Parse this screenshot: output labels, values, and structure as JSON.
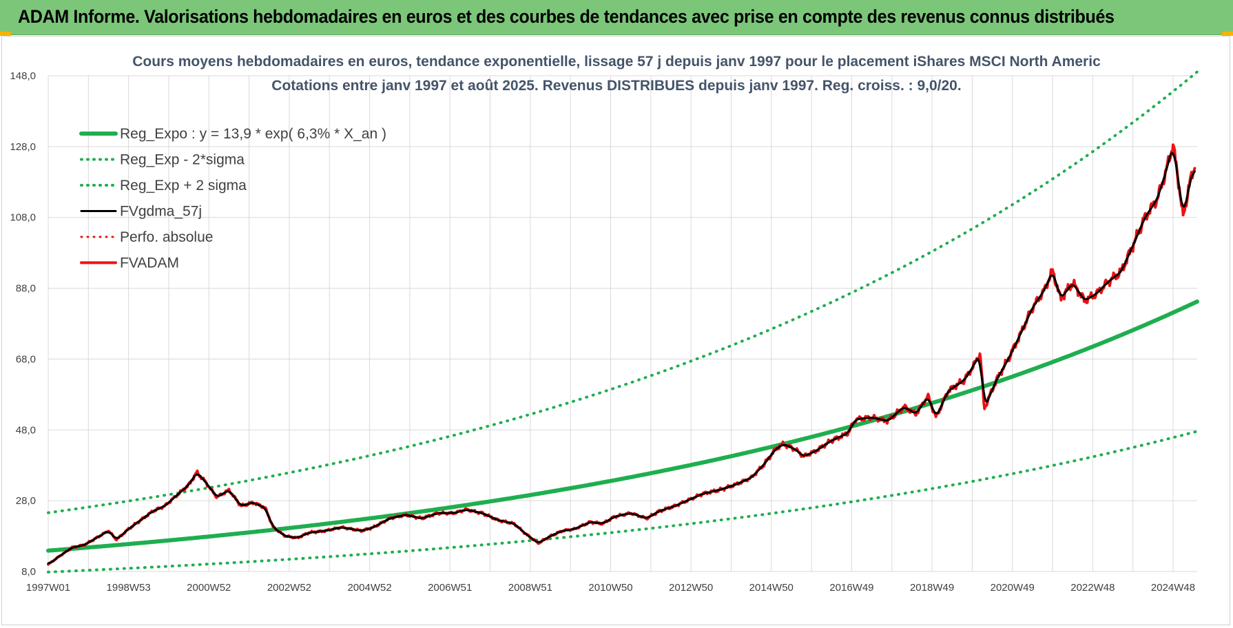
{
  "header": {
    "title": "ADAM Informe. Valorisations hebdomadaires en euros et des courbes de tendances avec prise en compte des revenus connus distribués"
  },
  "colors": {
    "banner": "#7cc67a",
    "green": "#1fae4f",
    "black": "#000000",
    "red": "#ee1111",
    "grid": "#d9d9d9"
  },
  "chart_data": {
    "type": "line",
    "title": "Cours moyens hebdomadaires en euros, tendance exponentielle, lissage 57 j depuis janv 1997 pour le placement iShares MSCI North Americ",
    "subtitle": "Cotations entre janv 1997 et août 2025.  Revenus DISTRIBUES depuis janv 1997. Reg. croiss. : 9,0/20.",
    "xlabel": "",
    "ylabel": "",
    "xlim": [
      1997.0,
      2025.6
    ],
    "ylim": [
      8,
      148
    ],
    "grid": true,
    "legend_position": "top-left",
    "y_ticks": [
      "8,0",
      "28,0",
      "48,0",
      "68,0",
      "88,0",
      "108,0",
      "128,0",
      "148,0"
    ],
    "x_ticks": [
      {
        "label": "1997W01",
        "x": 1997.0
      },
      {
        "label": "1998W53",
        "x": 1999.0
      },
      {
        "label": "2000W52",
        "x": 2001.0
      },
      {
        "label": "2002W52",
        "x": 2003.0
      },
      {
        "label": "2004W52",
        "x": 2005.0
      },
      {
        "label": "2006W51",
        "x": 2007.0
      },
      {
        "label": "2008W51",
        "x": 2009.0
      },
      {
        "label": "2010W50",
        "x": 2011.0
      },
      {
        "label": "2012W50",
        "x": 2013.0
      },
      {
        "label": "2014W50",
        "x": 2015.0
      },
      {
        "label": "2016W49",
        "x": 2017.0
      },
      {
        "label": "2018W49",
        "x": 2019.0
      },
      {
        "label": "2020W49",
        "x": 2021.0
      },
      {
        "label": "2022W48",
        "x": 2023.0
      },
      {
        "label": "2024W48",
        "x": 2025.0
      }
    ],
    "regression": {
      "a": 13.9,
      "rate": 0.063,
      "sigma_factor": 1.77
    },
    "series": [
      {
        "name": "Reg_Expo : y = 13,9 * exp( 6,3% *  X_an )",
        "kind": "reg",
        "color": "#1fae4f",
        "style": "solid",
        "width": 6
      },
      {
        "name": "Reg_Exp - 2*sigma",
        "kind": "reg_low",
        "color": "#1fae4f",
        "style": "dotted",
        "width": 4
      },
      {
        "name": "Reg_Exp + 2 sigma",
        "kind": "reg_high",
        "color": "#1fae4f",
        "style": "dotted",
        "width": 4
      },
      {
        "name": "FVgdma_57j",
        "kind": "smooth",
        "color": "#000000",
        "style": "solid",
        "width": 3
      },
      {
        "name": "Perfo. absolue",
        "kind": "none",
        "color": "#ee1111",
        "style": "dotted",
        "width": 3
      },
      {
        "name": "FVADAM",
        "kind": "price",
        "color": "#ee1111",
        "style": "solid",
        "width": 4
      }
    ],
    "price_points": [
      [
        1997.0,
        10.0
      ],
      [
        1997.3,
        12.5
      ],
      [
        1997.6,
        14.8
      ],
      [
        1997.9,
        15.5
      ],
      [
        1998.2,
        17.5
      ],
      [
        1998.5,
        19.5
      ],
      [
        1998.7,
        17.0
      ],
      [
        1999.0,
        20.0
      ],
      [
        1999.3,
        22.5
      ],
      [
        1999.6,
        25.0
      ],
      [
        1999.9,
        26.5
      ],
      [
        2000.2,
        29.5
      ],
      [
        2000.5,
        32.5
      ],
      [
        2000.7,
        36.0
      ],
      [
        2000.9,
        33.5
      ],
      [
        2001.2,
        29.0
      ],
      [
        2001.5,
        31.0
      ],
      [
        2001.8,
        26.5
      ],
      [
        2002.1,
        27.5
      ],
      [
        2002.4,
        26.0
      ],
      [
        2002.6,
        20.5
      ],
      [
        2002.9,
        18.0
      ],
      [
        2003.2,
        17.5
      ],
      [
        2003.5,
        19.0
      ],
      [
        2003.9,
        19.5
      ],
      [
        2004.3,
        20.5
      ],
      [
        2004.8,
        19.5
      ],
      [
        2005.1,
        20.5
      ],
      [
        2005.5,
        23.0
      ],
      [
        2005.9,
        24.0
      ],
      [
        2006.3,
        23.0
      ],
      [
        2006.7,
        24.5
      ],
      [
        2007.1,
        24.5
      ],
      [
        2007.4,
        25.5
      ],
      [
        2007.8,
        24.5
      ],
      [
        2008.2,
        22.5
      ],
      [
        2008.6,
        21.5
      ],
      [
        2008.9,
        18.5
      ],
      [
        2009.2,
        16.0
      ],
      [
        2009.5,
        18.0
      ],
      [
        2009.8,
        19.5
      ],
      [
        2010.1,
        20.0
      ],
      [
        2010.5,
        22.0
      ],
      [
        2010.8,
        21.5
      ],
      [
        2011.1,
        23.5
      ],
      [
        2011.5,
        24.5
      ],
      [
        2011.9,
        23.0
      ],
      [
        2012.2,
        25.0
      ],
      [
        2012.6,
        26.5
      ],
      [
        2012.9,
        28.0
      ],
      [
        2013.3,
        30.0
      ],
      [
        2013.7,
        31.0
      ],
      [
        2014.1,
        32.5
      ],
      [
        2014.5,
        34.5
      ],
      [
        2014.8,
        38.0
      ],
      [
        2015.1,
        42.5
      ],
      [
        2015.3,
        44.0
      ],
      [
        2015.6,
        42.5
      ],
      [
        2015.8,
        40.5
      ],
      [
        2016.1,
        42.0
      ],
      [
        2016.5,
        45.0
      ],
      [
        2016.9,
        47.0
      ],
      [
        2017.1,
        51.0
      ],
      [
        2017.5,
        51.5
      ],
      [
        2017.9,
        50.5
      ],
      [
        2018.3,
        54.5
      ],
      [
        2018.6,
        52.5
      ],
      [
        2018.9,
        57.5
      ],
      [
        2019.1,
        51.5
      ],
      [
        2019.4,
        59.0
      ],
      [
        2019.8,
        62.0
      ],
      [
        2020.0,
        65.5
      ],
      [
        2020.2,
        69.5
      ],
      [
        2020.3,
        54.0
      ],
      [
        2020.6,
        62.0
      ],
      [
        2020.9,
        68.0
      ],
      [
        2021.2,
        75.0
      ],
      [
        2021.5,
        82.5
      ],
      [
        2021.8,
        87.5
      ],
      [
        2022.0,
        93.0
      ],
      [
        2022.2,
        85.0
      ],
      [
        2022.5,
        89.5
      ],
      [
        2022.8,
        84.5
      ],
      [
        2023.1,
        86.5
      ],
      [
        2023.4,
        90.0
      ],
      [
        2023.7,
        92.5
      ],
      [
        2024.0,
        100.0
      ],
      [
        2024.3,
        108.0
      ],
      [
        2024.6,
        113.0
      ],
      [
        2024.8,
        120.0
      ],
      [
        2025.0,
        128.5
      ],
      [
        2025.15,
        117.0
      ],
      [
        2025.25,
        108.0
      ],
      [
        2025.4,
        117.0
      ],
      [
        2025.55,
        123.0
      ]
    ]
  }
}
